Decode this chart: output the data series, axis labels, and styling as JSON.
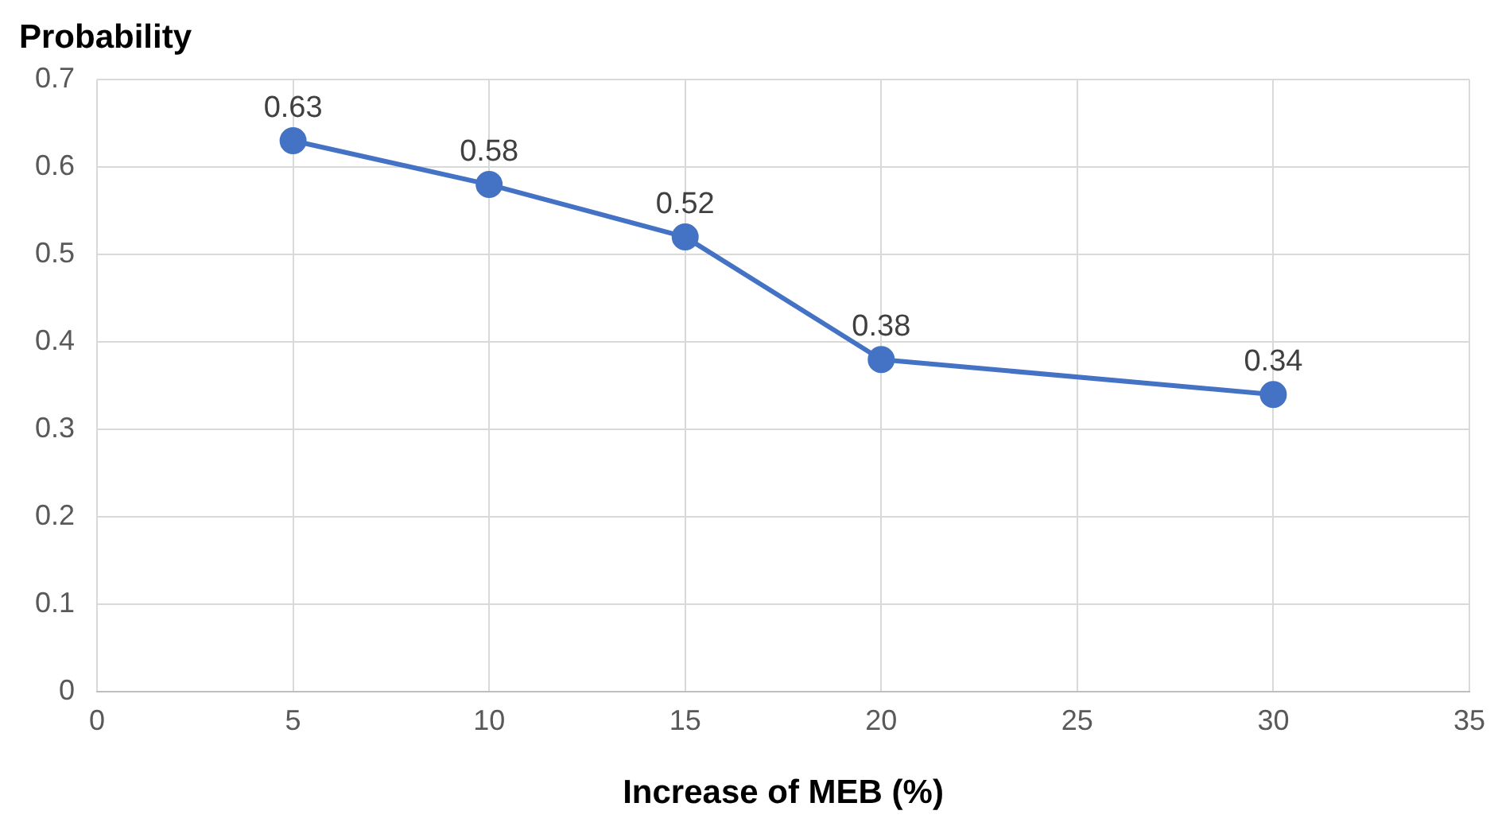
{
  "chart_data": {
    "type": "line",
    "xlabel": "Increase of MEB (%)",
    "ylabel": "Probability",
    "x": [
      5,
      10,
      15,
      20,
      30
    ],
    "series": [
      {
        "color": "#4472c4",
        "values": [
          0.63,
          0.58,
          0.52,
          0.38,
          0.34
        ]
      }
    ],
    "xlim": [
      0,
      35
    ],
    "xticks": [
      0,
      5,
      10,
      15,
      20,
      25,
      30,
      35
    ],
    "ylim": [
      0,
      0.7
    ],
    "yticks": [
      0,
      0.1,
      0.2,
      0.3,
      0.4,
      0.5,
      0.6,
      0.7
    ],
    "grid": true,
    "legend": false,
    "marker": "circle",
    "line_style": "solid",
    "data_labels": true
  }
}
